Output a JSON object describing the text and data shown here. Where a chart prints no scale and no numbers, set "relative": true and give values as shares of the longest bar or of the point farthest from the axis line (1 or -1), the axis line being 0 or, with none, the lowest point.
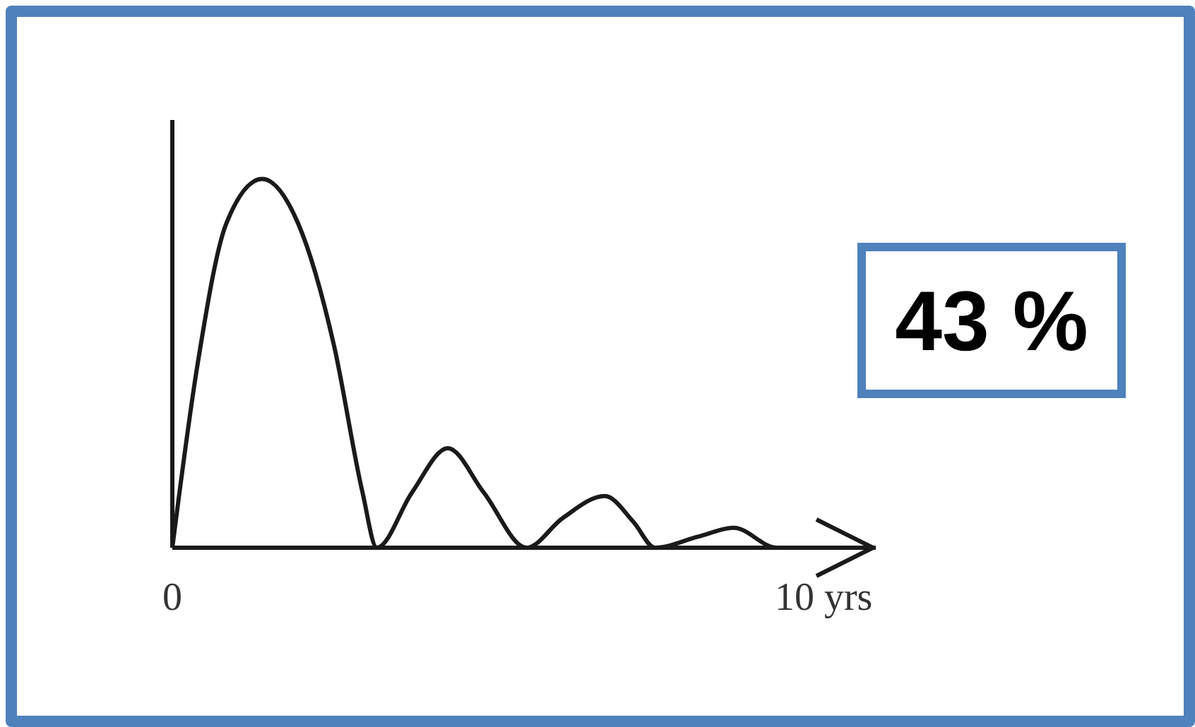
{
  "chart_data": {
    "type": "line",
    "relative": true,
    "x": [
      0,
      0.39,
      0.83,
      1.38,
      1.93,
      2.48,
      2.92,
      3.14,
      3.68,
      4.23,
      4.78,
      5.44,
      5.99,
      6.64,
      7.08,
      7.41,
      8.07,
      8.62,
      9.28,
      9.93
    ],
    "series": [
      {
        "color": "#1a1a1a",
        "values": [
          0,
          0.5,
          0.88,
          1,
          0.88,
          0.55,
          0.15,
          0,
          0.15,
          0.27,
          0.15,
          0,
          0.08,
          0.14,
          0.07,
          0,
          0.03,
          0.054,
          0,
          0
        ]
      }
    ],
    "xlim": [
      0,
      10.8
    ],
    "xticks": [
      0,
      {
        "value": 10,
        "label": "10 yrs"
      }
    ],
    "annotations": [
      "43 %"
    ],
    "grid": false,
    "legend": false,
    "marker": "none"
  }
}
